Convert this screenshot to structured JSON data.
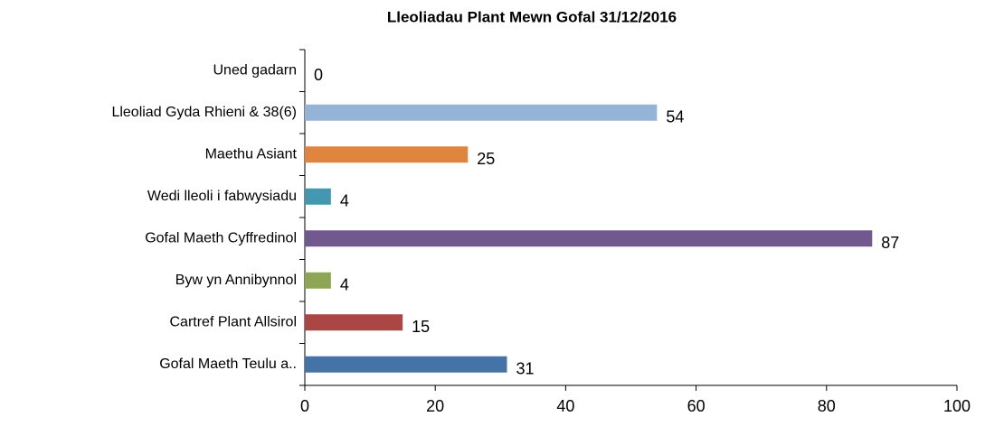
{
  "chart_data": {
    "type": "bar",
    "orientation": "horizontal",
    "title": "Lleoliadau Plant Mewn Gofal 31/12/2016",
    "categories": [
      "Uned gadarn",
      "Lleoliad Gyda Rhieni & 38(6)",
      "Maethu Asiant",
      "Wedi lleoli i fabwysiadu",
      "Gofal Maeth Cyffredinol",
      "Byw yn Annibynnol",
      "Cartref Plant Allsirol",
      "Gofal Maeth Teulu a.."
    ],
    "values": [
      0,
      54,
      25,
      4,
      87,
      4,
      15,
      31
    ],
    "colors": [
      "#2c4d75",
      "#95b3d7",
      "#e0843e",
      "#4198af",
      "#71588f",
      "#8ea553",
      "#aa4643",
      "#4572a7"
    ],
    "xlim": [
      0,
      100
    ],
    "xticks": [
      0,
      20,
      40,
      60,
      80,
      100
    ],
    "grid": false
  }
}
